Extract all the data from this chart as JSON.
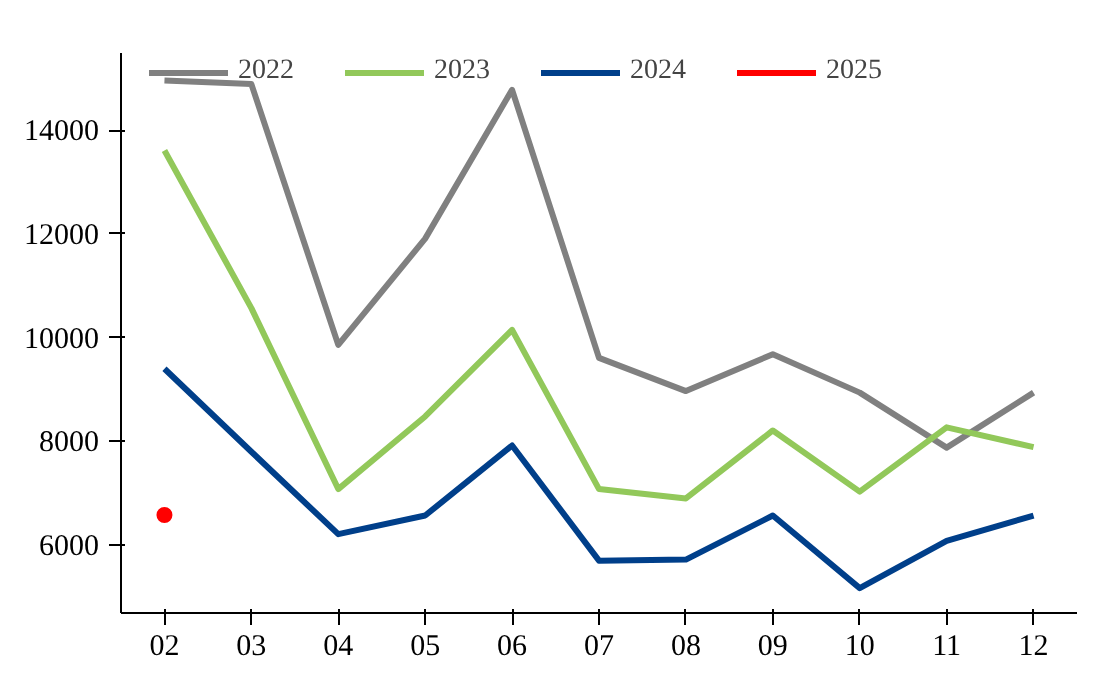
{
  "chart_data": {
    "type": "line",
    "categories": [
      "02",
      "03",
      "04",
      "05",
      "06",
      "07",
      "08",
      "09",
      "10",
      "11",
      "12"
    ],
    "series": [
      {
        "name": "2022",
        "color": "#808080",
        "values": [
          14960,
          14890,
          9860,
          11910,
          14780,
          9610,
          8970,
          9680,
          8940,
          7880,
          8940
        ]
      },
      {
        "name": "2023",
        "color": "#92c85a",
        "values": [
          13610,
          10570,
          7080,
          8480,
          10150,
          7080,
          6900,
          8210,
          7030,
          8270,
          7890
        ]
      },
      {
        "name": "2024",
        "color": "#003f8a",
        "values": [
          9400,
          7800,
          6210,
          6570,
          7920,
          5700,
          5720,
          6570,
          5170,
          6080,
          6570
        ]
      },
      {
        "name": "2025",
        "type": "scatter",
        "marker": "circle",
        "color": "#ff0000",
        "values": [
          6580,
          null,
          null,
          null,
          null,
          null,
          null,
          null,
          null,
          null,
          null
        ]
      }
    ],
    "ylim": [
      4690,
      15490
    ],
    "yticks": [
      6000,
      8000,
      10000,
      12000,
      14000
    ],
    "grid": false,
    "legend": "top",
    "marker": "none",
    "line_style": "solid"
  }
}
